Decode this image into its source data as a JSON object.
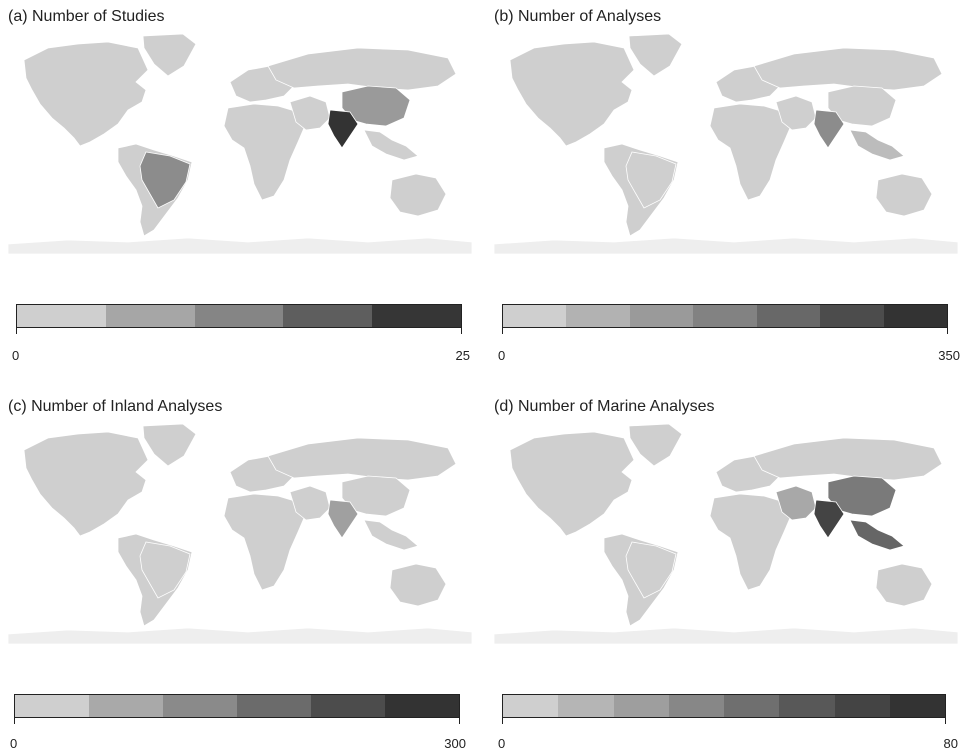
{
  "panels": [
    {
      "id": "a",
      "title": "(a) Number of Studies",
      "legend": {
        "min": "0",
        "max": "25",
        "colors": [
          "#cfcfcf",
          "#a6a6a6",
          "#858585",
          "#5e5e5e",
          "#363636"
        ]
      },
      "countries": {
        "north_america": "#cfcfcf",
        "greenland": "#cfcfcf",
        "south_america": "#cfcfcf",
        "brazil": "#8c8c8c",
        "africa": "#cfcfcf",
        "europe": "#cfcfcf",
        "russia": "#cfcfcf",
        "china": "#9a9a9a",
        "india": "#333333",
        "middle_east": "#cfcfcf",
        "southeast_asia": "#cfcfcf",
        "australia": "#cfcfcf",
        "antarctica": "#eeeeee"
      }
    },
    {
      "id": "b",
      "title": "(b) Number of Analyses",
      "legend": {
        "min": "0",
        "max": "350",
        "colors": [
          "#cfcfcf",
          "#b2b2b2",
          "#9a9a9a",
          "#828282",
          "#686868",
          "#4c4c4c",
          "#333333"
        ]
      },
      "countries": {
        "north_america": "#cfcfcf",
        "greenland": "#cfcfcf",
        "south_america": "#cfcfcf",
        "brazil": "#cfcfcf",
        "africa": "#cfcfcf",
        "europe": "#cfcfcf",
        "russia": "#cfcfcf",
        "china": "#cfcfcf",
        "india": "#8c8c8c",
        "middle_east": "#cfcfcf",
        "southeast_asia": "#bcbcbc",
        "australia": "#cfcfcf",
        "antarctica": "#eeeeee"
      }
    },
    {
      "id": "c",
      "title": "(c) Number of Inland Analyses",
      "legend": {
        "min": "0",
        "max": "300",
        "colors": [
          "#cfcfcf",
          "#a9a9a9",
          "#8a8a8a",
          "#6b6b6b",
          "#4c4c4c",
          "#333333"
        ]
      },
      "countries": {
        "north_america": "#cfcfcf",
        "greenland": "#cfcfcf",
        "south_america": "#cfcfcf",
        "brazil": "#cfcfcf",
        "africa": "#cfcfcf",
        "europe": "#cfcfcf",
        "russia": "#cfcfcf",
        "china": "#cfcfcf",
        "india": "#a0a0a0",
        "middle_east": "#cfcfcf",
        "southeast_asia": "#cfcfcf",
        "australia": "#cfcfcf",
        "antarctica": "#eeeeee"
      }
    },
    {
      "id": "d",
      "title": "(d) Number of Marine Analyses",
      "legend": {
        "min": "0",
        "max": "80",
        "colors": [
          "#cfcfcf",
          "#b5b5b5",
          "#9e9e9e",
          "#878787",
          "#6f6f6f",
          "#585858",
          "#444444",
          "#333333"
        ]
      },
      "countries": {
        "north_america": "#cfcfcf",
        "greenland": "#cfcfcf",
        "south_america": "#cfcfcf",
        "brazil": "#cfcfcf",
        "africa": "#cfcfcf",
        "europe": "#cfcfcf",
        "russia": "#cfcfcf",
        "china": "#7a7a7a",
        "india": "#444444",
        "middle_east": "#a8a8a8",
        "southeast_asia": "#666666",
        "australia": "#cfcfcf",
        "antarctica": "#eeeeee"
      }
    }
  ]
}
